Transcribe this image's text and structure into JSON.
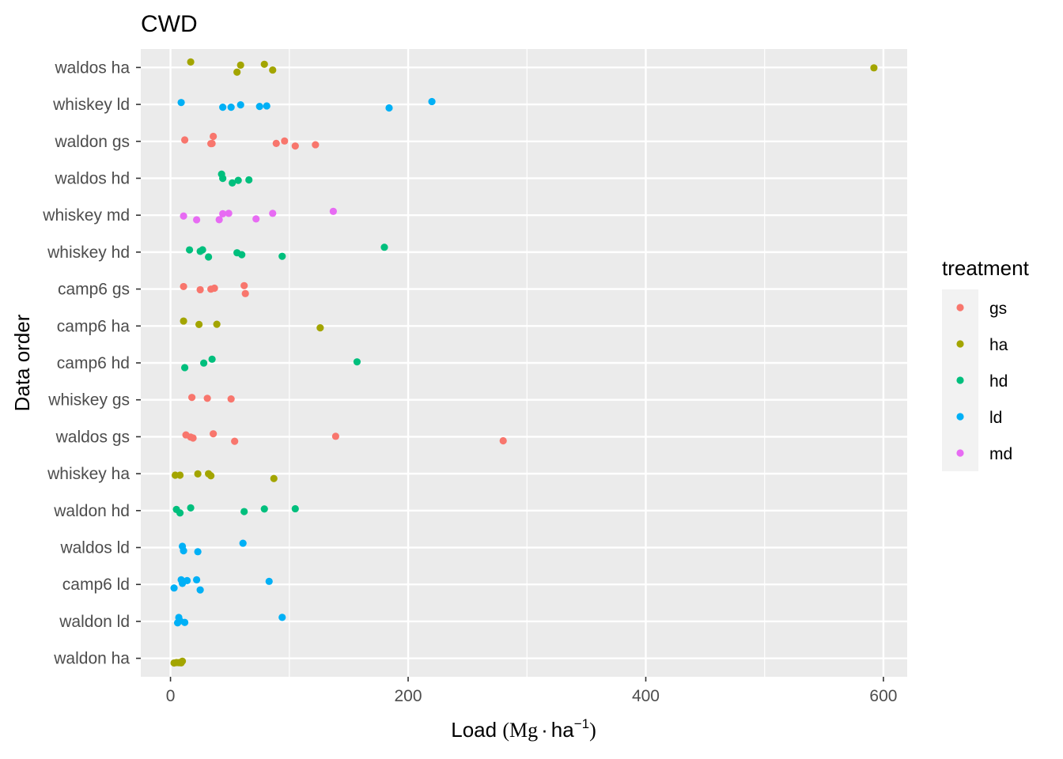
{
  "chart_data": {
    "type": "scatter",
    "title": "CWD",
    "xlabel": "Load",
    "xlabel_units": [
      "(Mg",
      "·",
      "ha",
      "−1",
      ")"
    ],
    "ylabel": "Data order",
    "xlim": [
      -25,
      620
    ],
    "xticks": [
      0,
      200,
      400,
      600
    ],
    "grid": true,
    "legend": {
      "title": "treatment",
      "position": "right",
      "entries": [
        "gs",
        "ha",
        "hd",
        "ld",
        "md"
      ]
    },
    "colors": {
      "gs": "#F8766D",
      "ha": "#A3A500",
      "hd": "#00BF7D",
      "ld": "#00B0F6",
      "md": "#E76BF3"
    },
    "categories": [
      "waldos ha",
      "whiskey ld",
      "waldon gs",
      "waldos hd",
      "whiskey md",
      "whiskey hd",
      "camp6 gs",
      "camp6 ha",
      "camp6 hd",
      "whiskey gs",
      "waldos gs",
      "whiskey ha",
      "waldon hd",
      "waldos ld",
      "camp6 ld",
      "waldon ld",
      "waldon ha"
    ],
    "series": [
      {
        "category": "waldos ha",
        "treatment": "ha",
        "values": [
          17,
          56,
          59,
          79,
          86,
          592
        ]
      },
      {
        "category": "whiskey ld",
        "treatment": "ld",
        "values": [
          9,
          44,
          51,
          59,
          75,
          81,
          184,
          220
        ]
      },
      {
        "category": "waldon gs",
        "treatment": "gs",
        "values": [
          12,
          34,
          35,
          36,
          89,
          96,
          105,
          122
        ]
      },
      {
        "category": "waldos hd",
        "treatment": "hd",
        "values": [
          43,
          44,
          52,
          57,
          66
        ]
      },
      {
        "category": "whiskey md",
        "treatment": "md",
        "values": [
          11,
          22,
          41,
          44,
          49,
          72,
          86,
          137
        ]
      },
      {
        "category": "whiskey hd",
        "treatment": "hd",
        "values": [
          16,
          25,
          27,
          32,
          56,
          60,
          94,
          180
        ]
      },
      {
        "category": "camp6 gs",
        "treatment": "gs",
        "values": [
          11,
          25,
          34,
          37,
          62,
          63
        ]
      },
      {
        "category": "camp6 ha",
        "treatment": "ha",
        "values": [
          11,
          24,
          39,
          126
        ]
      },
      {
        "category": "camp6 hd",
        "treatment": "hd",
        "values": [
          12,
          28,
          35,
          157
        ]
      },
      {
        "category": "whiskey gs",
        "treatment": "gs",
        "values": [
          18,
          31,
          51
        ]
      },
      {
        "category": "waldos gs",
        "treatment": "gs",
        "values": [
          13,
          17,
          19,
          36,
          54,
          139,
          280
        ]
      },
      {
        "category": "whiskey ha",
        "treatment": "ha",
        "values": [
          4,
          8,
          23,
          32,
          34,
          87
        ]
      },
      {
        "category": "waldon hd",
        "treatment": "hd",
        "values": [
          5,
          8,
          17,
          62,
          79,
          105
        ]
      },
      {
        "category": "waldos ld",
        "treatment": "ld",
        "values": [
          10,
          11,
          23,
          61
        ]
      },
      {
        "category": "camp6 ld",
        "treatment": "ld",
        "values": [
          3,
          9,
          10,
          14,
          22,
          25,
          83
        ]
      },
      {
        "category": "waldon ld",
        "treatment": "ld",
        "values": [
          6,
          7,
          8,
          12,
          94
        ]
      },
      {
        "category": "waldon ha",
        "treatment": "ha",
        "values": [
          3,
          5,
          7,
          8,
          9,
          10
        ]
      }
    ]
  }
}
